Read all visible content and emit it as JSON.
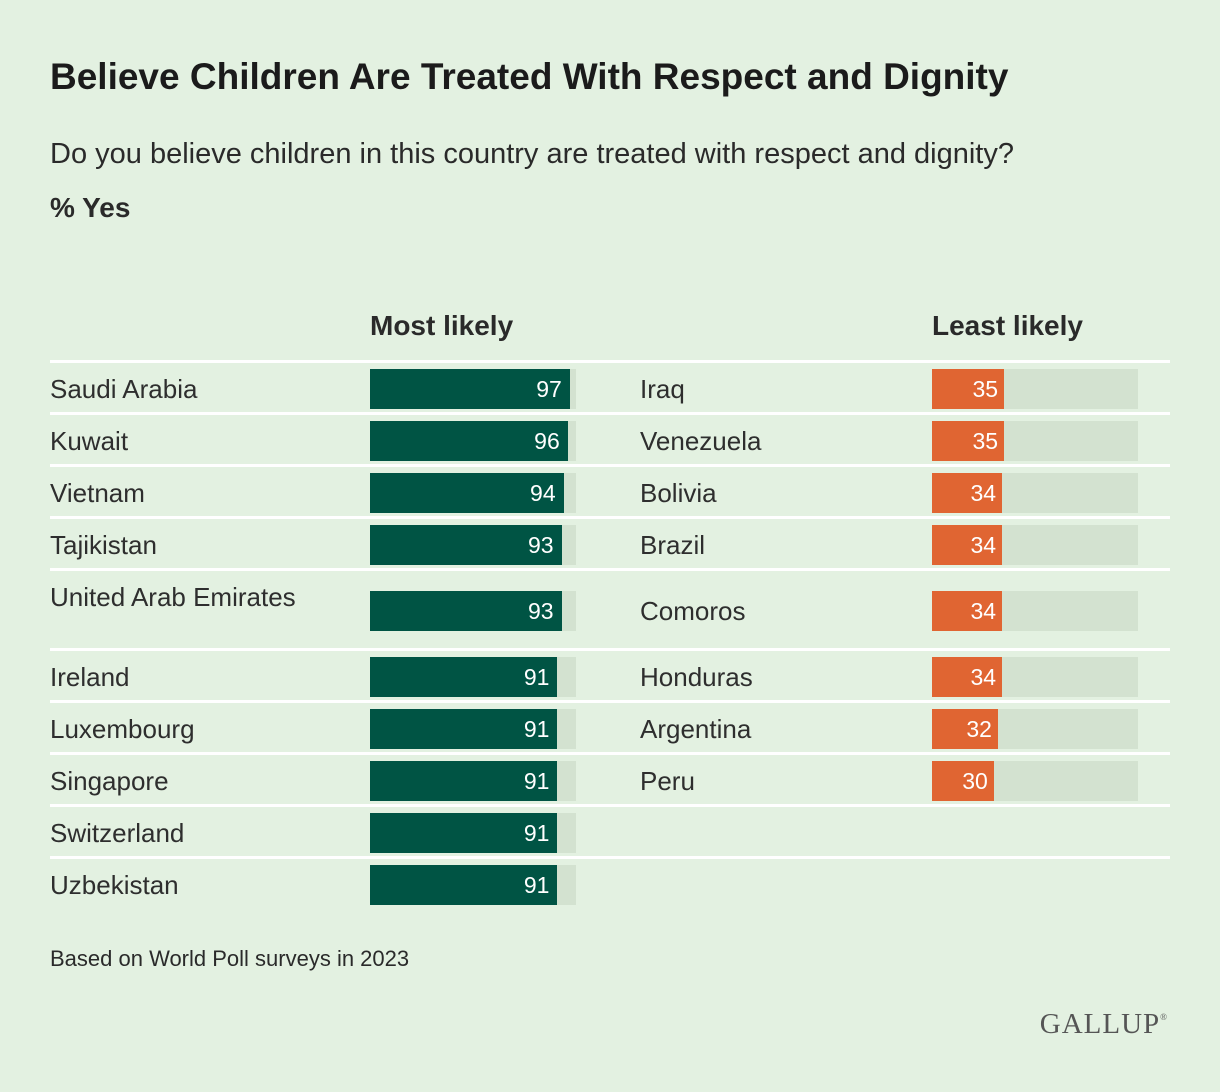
{
  "header": {
    "title": "Believe Children Are Treated With Respect and Dignity",
    "subtitle": "Do you believe children in this country are treated with respect and dignity?",
    "measure": "% Yes"
  },
  "chart_data": {
    "type": "bar",
    "orientation": "horizontal",
    "xlim": [
      0,
      100
    ],
    "colors": {
      "most": "#005444",
      "least": "#e06532",
      "track": "#d3e2d0",
      "background": "#e3f1e1"
    },
    "groups": [
      {
        "name": "Most likely",
        "categories": [
          "Saudi Arabia",
          "Kuwait",
          "Vietnam",
          "Tajikistan",
          "United Arab Emirates",
          "Ireland",
          "Luxembourg",
          "Singapore",
          "Switzerland",
          "Uzbekistan"
        ],
        "values": [
          97,
          96,
          94,
          93,
          93,
          91,
          91,
          91,
          91,
          91
        ]
      },
      {
        "name": "Least likely",
        "categories": [
          "Iraq",
          "Venezuela",
          "Bolivia",
          "Brazil",
          "Comoros",
          "Honduras",
          "Argentina",
          "Peru"
        ],
        "values": [
          35,
          35,
          34,
          34,
          34,
          34,
          32,
          30
        ]
      }
    ]
  },
  "footer": {
    "note": "Based on World Poll surveys in 2023",
    "logo": "GALLUP"
  }
}
